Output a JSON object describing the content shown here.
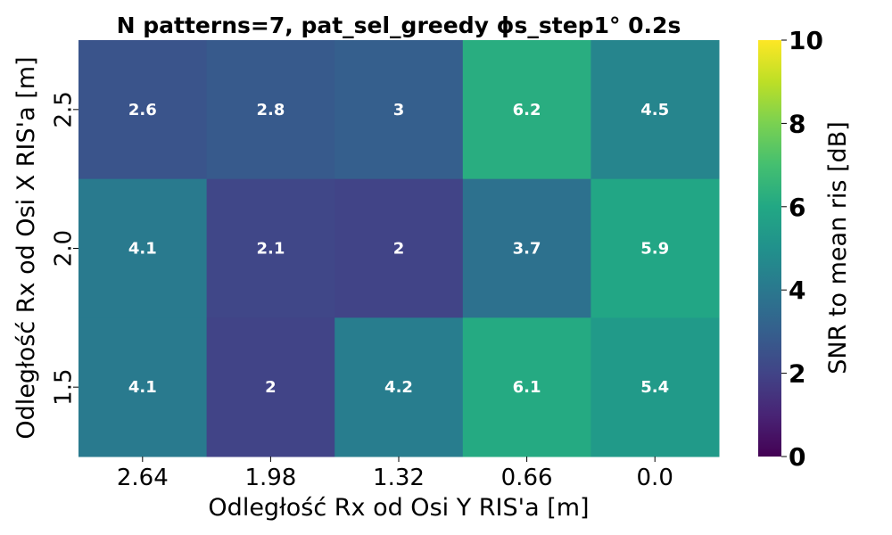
{
  "chart_data": {
    "type": "heatmap",
    "title": "N patterns=7, pat_sel_greedy ϕs_step1° 0.2s",
    "xlabel": "Odległość Rx od Osi Y RIS'a [m]",
    "ylabel": "Odległość Rx od Osi X RIS'a [m]",
    "x_categories": [
      "2.64",
      "1.98",
      "1.32",
      "0.66",
      "0.0"
    ],
    "y_categories": [
      "2.5",
      "2.0",
      "1.5"
    ],
    "values": [
      [
        2.6,
        2.8,
        3.0,
        6.2,
        4.5
      ],
      [
        4.1,
        2.1,
        2.0,
        3.7,
        5.9
      ],
      [
        4.1,
        2.0,
        4.2,
        6.1,
        5.4
      ]
    ],
    "annotations": [
      [
        "2.6",
        "2.8",
        "3",
        "6.2",
        "4.5"
      ],
      [
        "4.1",
        "2.1",
        "2",
        "3.7",
        "5.9"
      ],
      [
        "4.1",
        "2",
        "4.2",
        "6.1",
        "5.4"
      ]
    ],
    "colorbar": {
      "label": "SNR to mean ris [dB]",
      "vmin": 0,
      "vmax": 10,
      "ticks": [
        "0",
        "2",
        "4",
        "6",
        "8",
        "10"
      ],
      "colormap": "viridis"
    }
  }
}
